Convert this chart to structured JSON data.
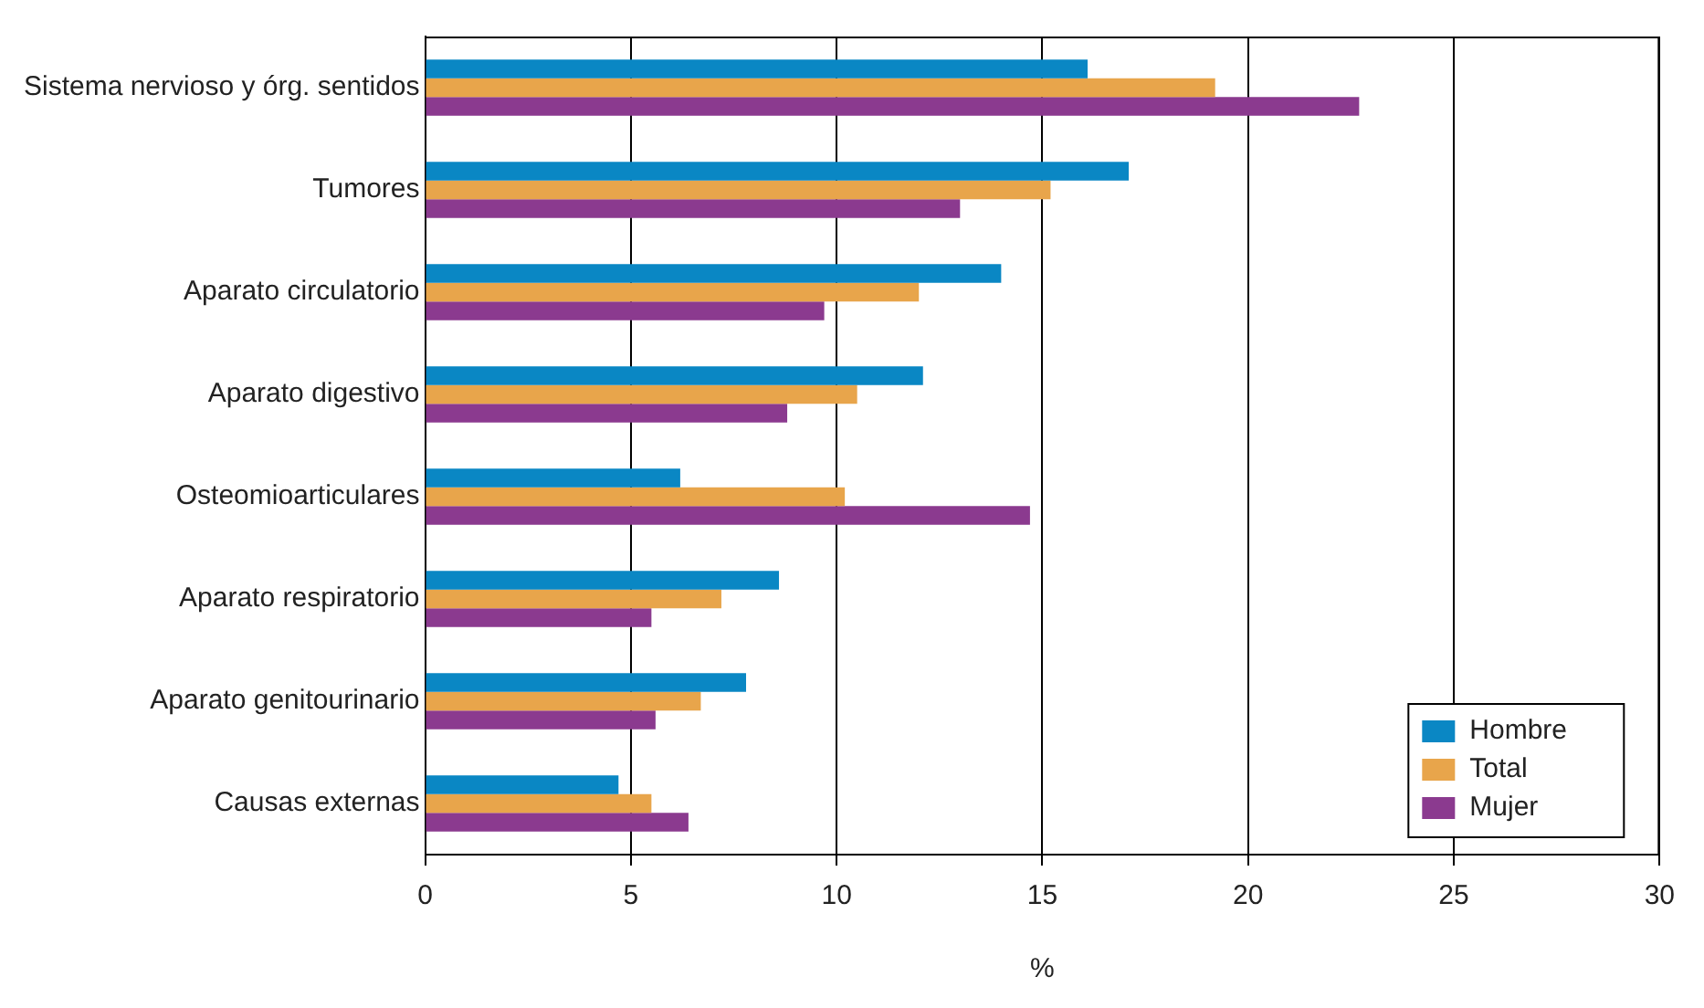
{
  "chart_data": {
    "type": "bar",
    "orientation": "horizontal",
    "xlabel": "%",
    "categories": [
      "Sistema nervioso y órg. sentidos",
      "Tumores",
      "Aparato circulatorio",
      "Aparato digestivo",
      "Osteomioarticulares",
      "Aparato respiratorio",
      "Aparato genitourinario",
      "Causas externas"
    ],
    "series": [
      {
        "name": "Hombre",
        "color": "#0a87c4",
        "values": [
          16.1,
          17.1,
          14.0,
          12.1,
          6.2,
          8.6,
          7.8,
          4.7
        ]
      },
      {
        "name": "Total",
        "color": "#e8a54b",
        "values": [
          19.2,
          15.2,
          12.0,
          10.5,
          10.2,
          7.2,
          6.7,
          5.5
        ]
      },
      {
        "name": "Mujer",
        "color": "#8b3a8f",
        "values": [
          22.7,
          13.0,
          9.7,
          8.8,
          14.7,
          5.5,
          5.6,
          6.4
        ]
      }
    ],
    "xlim": [
      0,
      30
    ],
    "xticks": [
      0,
      5,
      10,
      15,
      20,
      25,
      30
    ],
    "grid": "x",
    "legend": "bottom right"
  }
}
